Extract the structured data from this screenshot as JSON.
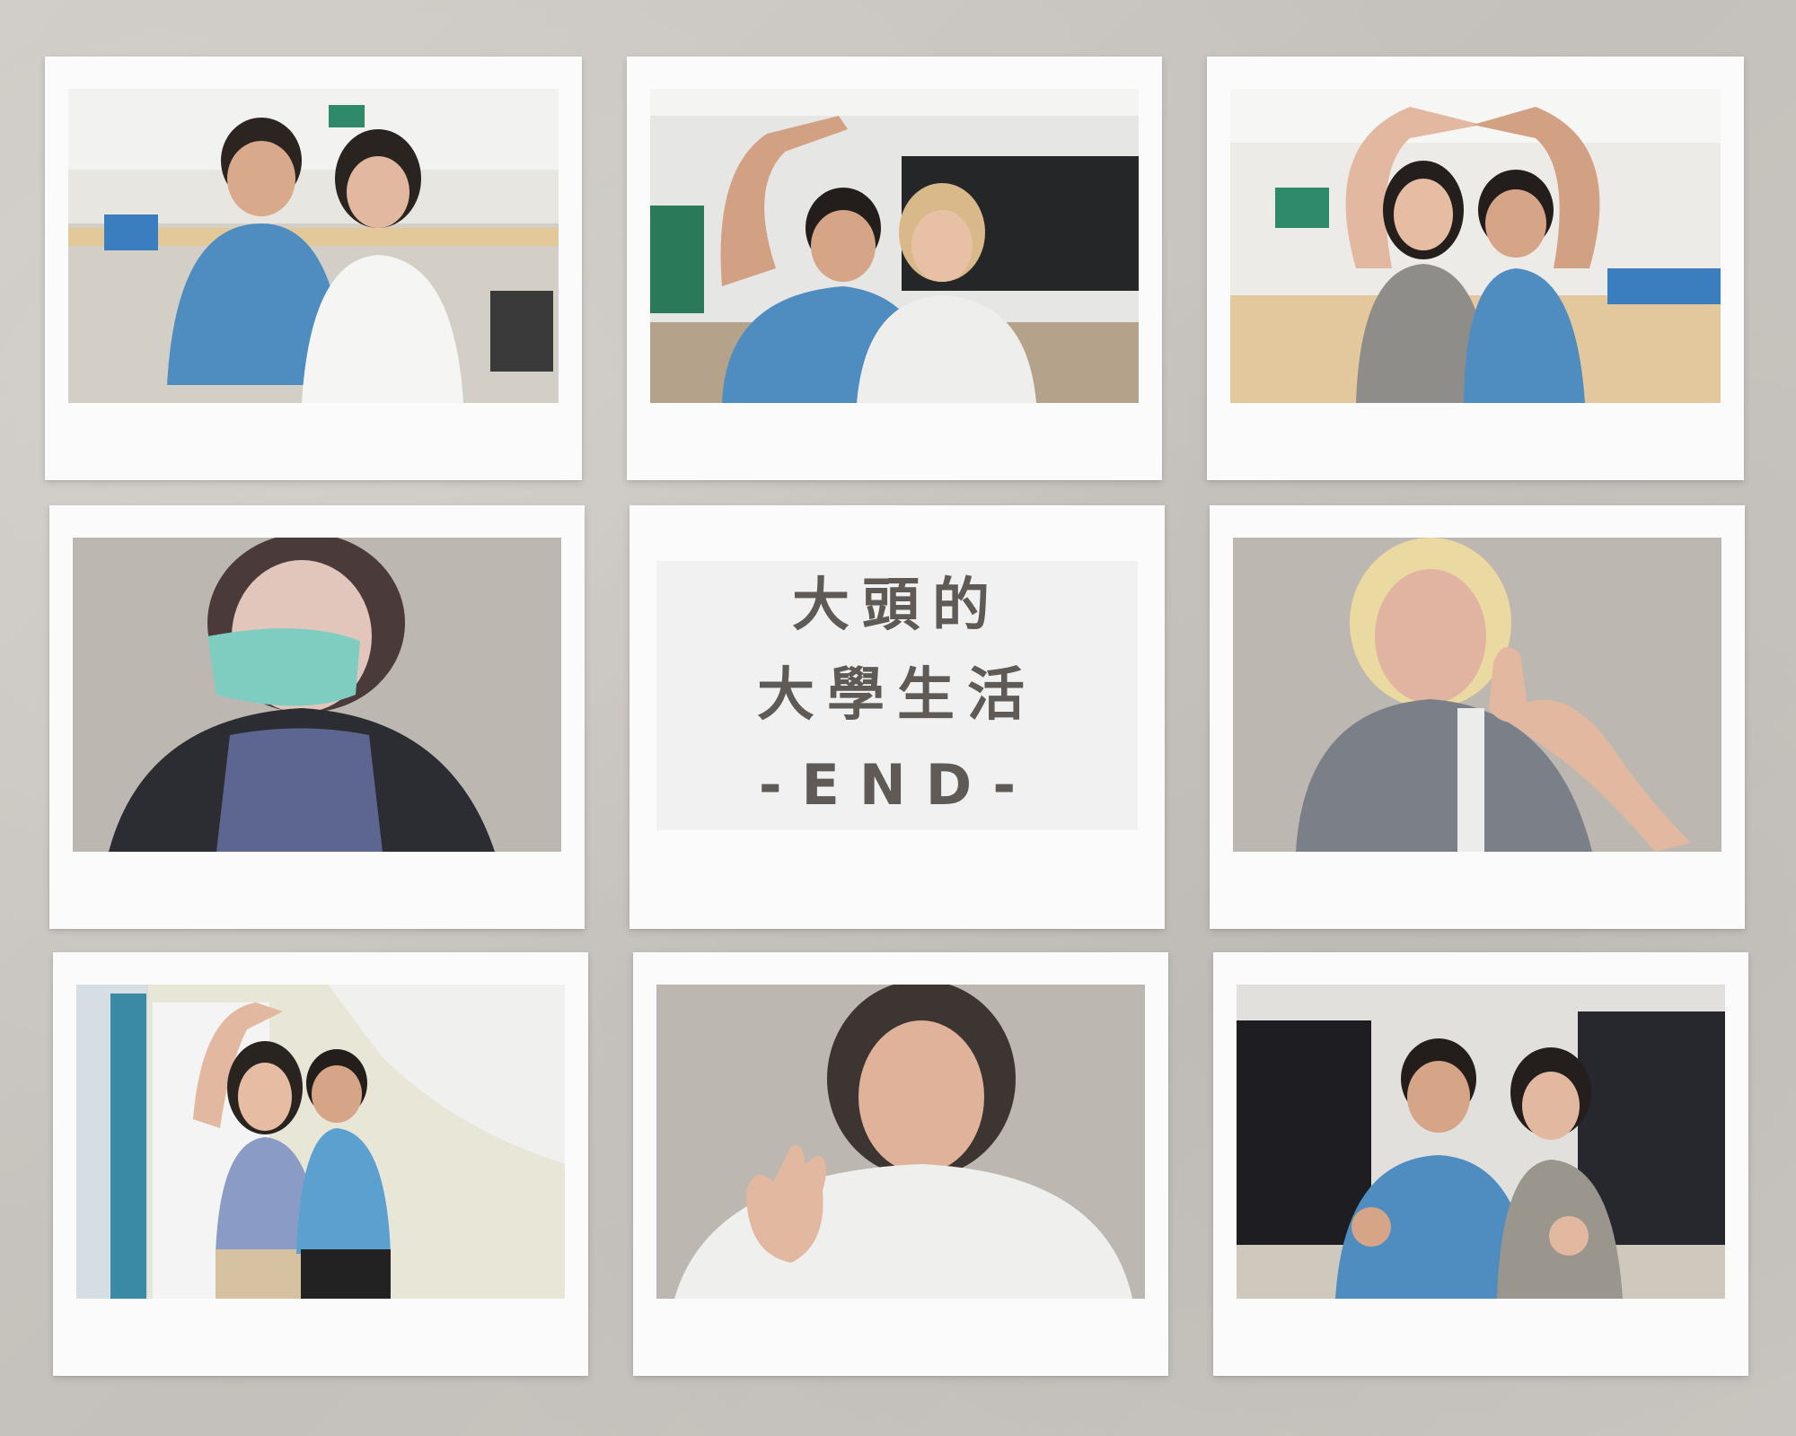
{
  "title": {
    "line1": "大頭的",
    "line2": "大學生活",
    "line3": "-END-"
  },
  "photos": [
    {
      "name": "photo-classroom-pair"
    },
    {
      "name": "photo-heart-arms-pair"
    },
    {
      "name": "photo-big-heart-pair"
    },
    {
      "name": "photo-masked-portrait"
    },
    {
      "name": "photo-thumbs-up-portrait"
    },
    {
      "name": "photo-hallway-heart-pair"
    },
    {
      "name": "photo-waving-portrait"
    },
    {
      "name": "photo-finger-heart-pair"
    }
  ],
  "colors": {
    "background": "#c9c5c0",
    "frame": "#fbfbfb",
    "title_text": "#5f5a55",
    "shirt_blue": "#4f8cc0"
  }
}
